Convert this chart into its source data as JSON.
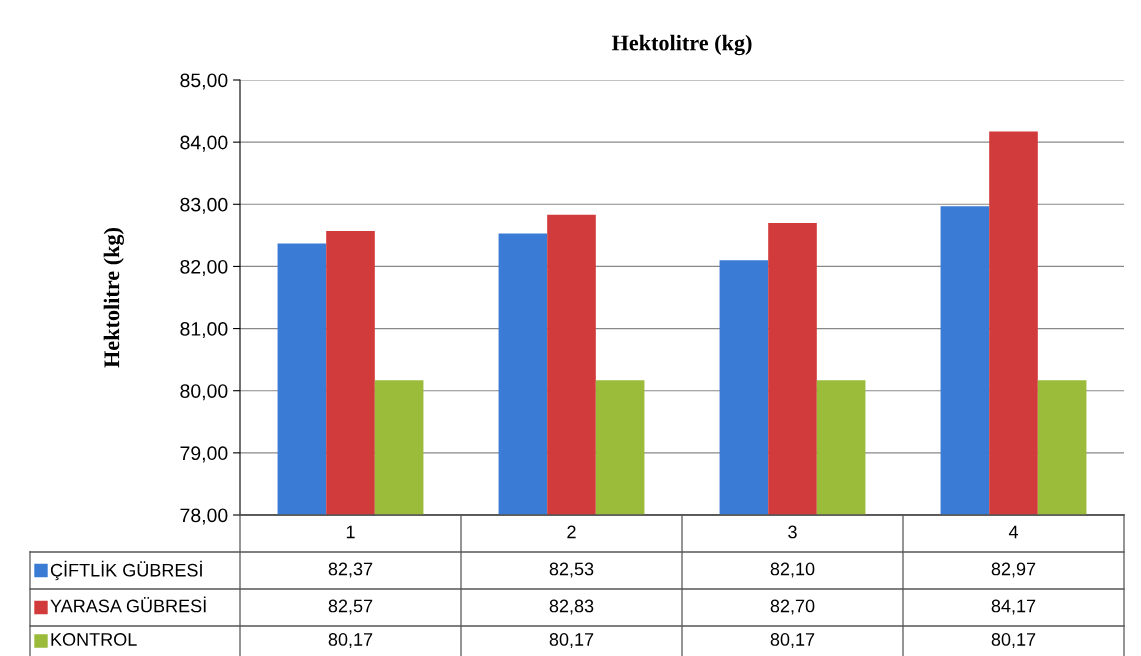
{
  "chart_data": {
    "type": "bar",
    "title": "Hektolitre (kg)",
    "ylabel": "Hektolitre (kg)",
    "categories": [
      "1",
      "2",
      "3",
      "4"
    ],
    "series": [
      {
        "name": "ÇİFTLİK GÜBRESİ",
        "color": "#3a7bd5",
        "values": [
          82.37,
          82.53,
          82.1,
          82.97
        ],
        "value_labels": [
          "82,37",
          "82,53",
          "82,10",
          "82,97"
        ]
      },
      {
        "name": "YARASA GÜBRESİ",
        "color": "#d23b3b",
        "values": [
          82.57,
          82.83,
          82.7,
          84.17
        ],
        "value_labels": [
          "82,57",
          "82,83",
          "82,70",
          "84,17"
        ]
      },
      {
        "name": "KONTROL",
        "color": "#9bbb3b",
        "values": [
          80.17,
          80.17,
          80.17,
          80.17
        ],
        "value_labels": [
          "80,17",
          "80,17",
          "80,17",
          "80,17"
        ]
      }
    ],
    "ylim": [
      78,
      85
    ],
    "yticks": [
      {
        "value": 78,
        "label": "78,00"
      },
      {
        "value": 79,
        "label": "79,00"
      },
      {
        "value": 80,
        "label": "80,00"
      },
      {
        "value": 81,
        "label": "81,00"
      },
      {
        "value": 82,
        "label": "82,00"
      },
      {
        "value": 83,
        "label": "83,00"
      },
      {
        "value": 84,
        "label": "84,00"
      },
      {
        "value": 85,
        "label": "85,00"
      }
    ],
    "grid": "y",
    "legend": "bottom"
  }
}
